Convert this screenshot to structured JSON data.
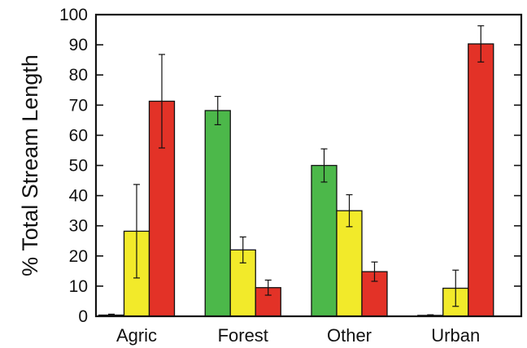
{
  "chart_data": {
    "type": "bar",
    "title": "",
    "xlabel": "",
    "ylabel": "% Total Stream Length",
    "ylim": [
      0,
      100
    ],
    "yticks": [
      0,
      10,
      20,
      30,
      40,
      50,
      60,
      70,
      80,
      90,
      100
    ],
    "categories": [
      "Agric",
      "Forest",
      "Other",
      "Urban"
    ],
    "series": [
      {
        "color": "#4cb84a",
        "values": [
          0.4,
          68.2,
          50.0,
          0.3
        ],
        "error": [
          0.3,
          4.7,
          5.5,
          0.2
        ]
      },
      {
        "color": "#f2ea2a",
        "values": [
          28.2,
          22.0,
          35.0,
          9.3
        ],
        "error": [
          15.5,
          4.3,
          5.3,
          6.0
        ]
      },
      {
        "color": "#e33227",
        "values": [
          71.3,
          9.5,
          14.8,
          90.3
        ],
        "error": [
          15.5,
          2.5,
          3.2,
          6.0
        ]
      }
    ],
    "grid": false,
    "legend": "none",
    "frame_color": "#111111"
  }
}
